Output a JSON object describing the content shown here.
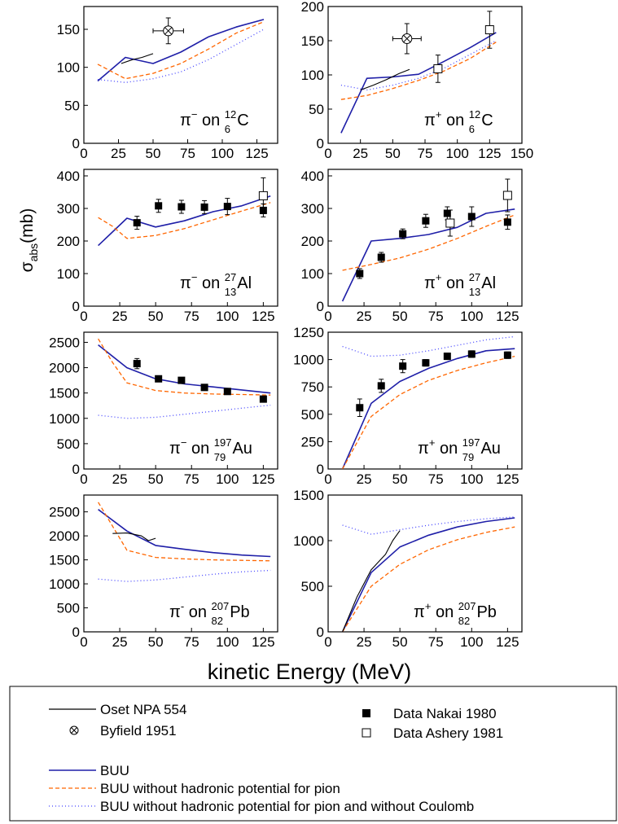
{
  "figure": {
    "ylabel_main": "σ",
    "ylabel_sub": "abs",
    "ylabel_unit": "(mb)",
    "xlabel": "kinetic Energy (MeV)"
  },
  "legend": {
    "oset": "Oset  NPA 554",
    "byfield": "Byfield 1951",
    "nakai": "Data Nakai 1980",
    "ashery": "Data Ashery 1981",
    "buu": "BUU",
    "buu_nohad": "BUU without hadronic potential for pion",
    "buu_nohad_nocoul": "BUU without hadronic potential for pion and without Coulomb"
  },
  "colors": {
    "buu": "#1f1fa8",
    "buu_nohad": "#ff6600",
    "buu_nohad_nocoul": "#4444ff",
    "oset": "#000000",
    "data": "#000000"
  },
  "chart_data": [
    {
      "type": "line",
      "label_pre": "π",
      "label_charge": "−",
      "label_mass": "12",
      "label_z": "6",
      "label_el": "C",
      "xlim": [
        0,
        140
      ],
      "ylim": [
        0,
        180
      ],
      "xticks": [
        "0",
        "25",
        "50",
        "75",
        "100",
        "125"
      ],
      "xtick_values": [
        0,
        25,
        50,
        75,
        100,
        125
      ],
      "yticks": [
        "0",
        "50",
        "100",
        "150"
      ],
      "ytick_values": [
        0,
        50,
        100,
        150
      ],
      "grid": false,
      "series": [
        {
          "key": "buu",
          "x": [
            10,
            30,
            50,
            70,
            90,
            110,
            130
          ],
          "y": [
            82,
            113,
            105,
            120,
            140,
            153,
            163
          ]
        },
        {
          "key": "buu_nohad",
          "x": [
            10,
            30,
            50,
            70,
            90,
            110,
            130
          ],
          "y": [
            104,
            85,
            92,
            105,
            124,
            145,
            160
          ]
        },
        {
          "key": "buu_nohad_nocoul",
          "x": [
            10,
            30,
            50,
            70,
            90,
            110,
            130
          ],
          "y": [
            84,
            80,
            85,
            94,
            110,
            130,
            150
          ]
        },
        {
          "key": "oset",
          "x": [
            27,
            35,
            42,
            50
          ],
          "y": [
            105,
            110,
            113,
            118
          ]
        }
      ],
      "byfield": [
        {
          "x": 61,
          "y": 148,
          "xerr": 11,
          "yerr": 17
        }
      ],
      "nakai": [],
      "ashery": []
    },
    {
      "type": "line",
      "label_pre": "π",
      "label_charge": "+",
      "label_mass": "12",
      "label_z": "6",
      "label_el": "C",
      "xlim": [
        0,
        150
      ],
      "ylim": [
        0,
        200
      ],
      "xticks": [
        "0",
        "25",
        "50",
        "75",
        "100",
        "125",
        "150"
      ],
      "xtick_values": [
        0,
        25,
        50,
        75,
        100,
        125,
        150
      ],
      "yticks": [
        "0",
        "50",
        "100",
        "150",
        "200"
      ],
      "ytick_values": [
        0,
        50,
        100,
        150,
        200
      ],
      "grid": false,
      "series": [
        {
          "key": "buu",
          "x": [
            10,
            30,
            50,
            70,
            90,
            110,
            130
          ],
          "y": [
            15,
            95,
            97,
            101,
            120,
            140,
            162
          ]
        },
        {
          "key": "buu_nohad",
          "x": [
            10,
            30,
            50,
            70,
            90,
            110,
            130
          ],
          "y": [
            64,
            70,
            80,
            92,
            106,
            124,
            148
          ]
        },
        {
          "key": "buu_nohad_nocoul",
          "x": [
            10,
            30,
            50,
            70,
            90,
            110,
            130
          ],
          "y": [
            85,
            78,
            85,
            95,
            110,
            130,
            150
          ]
        },
        {
          "key": "oset",
          "x": [
            25,
            35,
            45,
            55,
            63
          ],
          "y": [
            78,
            85,
            93,
            102,
            108
          ]
        }
      ],
      "byfield": [
        {
          "x": 61,
          "y": 153,
          "xerr": 11,
          "yerr": 22
        }
      ],
      "nakai": [],
      "ashery": [
        {
          "x": 85,
          "y": 109,
          "yerr": 20
        },
        {
          "x": 125,
          "y": 166,
          "yerr": 27
        }
      ]
    },
    {
      "type": "line",
      "label_pre": "π",
      "label_charge": "−",
      "label_mass": "27",
      "label_z": "13",
      "label_el": "Al",
      "xlim": [
        0,
        135
      ],
      "ylim": [
        0,
        420
      ],
      "xticks": [
        "0",
        "25",
        "50",
        "75",
        "100",
        "125"
      ],
      "xtick_values": [
        0,
        25,
        50,
        75,
        100,
        125
      ],
      "yticks": [
        "0",
        "100",
        "200",
        "300",
        "400"
      ],
      "ytick_values": [
        0,
        100,
        200,
        300,
        400
      ],
      "grid": false,
      "series": [
        {
          "key": "buu",
          "x": [
            10,
            30,
            50,
            70,
            90,
            110,
            130
          ],
          "y": [
            186,
            270,
            243,
            262,
            290,
            308,
            338
          ]
        },
        {
          "key": "buu_nohad",
          "x": [
            10,
            20,
            30,
            50,
            70,
            90,
            110,
            130
          ],
          "y": [
            272,
            245,
            208,
            217,
            238,
            265,
            292,
            318
          ]
        }
      ],
      "byfield": [],
      "nakai": [
        {
          "x": 37,
          "y": 256,
          "yerr": 20
        },
        {
          "x": 52,
          "y": 308,
          "yerr": 20
        },
        {
          "x": 68,
          "y": 305,
          "yerr": 20
        },
        {
          "x": 84,
          "y": 304,
          "yerr": 20
        },
        {
          "x": 100,
          "y": 306,
          "yerr": 25
        },
        {
          "x": 125,
          "y": 294,
          "yerr": 20
        }
      ],
      "ashery": [
        {
          "x": 125,
          "y": 339,
          "yerr": 55
        }
      ]
    },
    {
      "type": "line",
      "label_pre": "π",
      "label_charge": "+",
      "label_mass": "27",
      "label_z": "13",
      "label_el": "Al",
      "xlim": [
        0,
        135
      ],
      "ylim": [
        0,
        420
      ],
      "xticks": [
        "0",
        "25",
        "50",
        "75",
        "100",
        "125"
      ],
      "xtick_values": [
        0,
        25,
        50,
        75,
        100,
        125
      ],
      "yticks": [
        "0",
        "100",
        "200",
        "300",
        "400"
      ],
      "ytick_values": [
        0,
        100,
        200,
        300,
        400
      ],
      "grid": false,
      "series": [
        {
          "key": "buu",
          "x": [
            10,
            30,
            50,
            70,
            90,
            110,
            130
          ],
          "y": [
            15,
            200,
            208,
            220,
            242,
            285,
            298
          ]
        },
        {
          "key": "buu_nohad",
          "x": [
            10,
            30,
            50,
            70,
            90,
            110,
            130
          ],
          "y": [
            110,
            128,
            148,
            175,
            208,
            245,
            280
          ]
        }
      ],
      "byfield": [],
      "nakai": [
        {
          "x": 22,
          "y": 100,
          "yerr": 15
        },
        {
          "x": 37,
          "y": 150,
          "yerr": 15
        },
        {
          "x": 52,
          "y": 222,
          "yerr": 15
        },
        {
          "x": 68,
          "y": 262,
          "yerr": 20
        },
        {
          "x": 83,
          "y": 285,
          "yerr": 20
        },
        {
          "x": 100,
          "y": 275,
          "yerr": 30
        },
        {
          "x": 125,
          "y": 258,
          "yerr": 22
        }
      ],
      "ashery": [
        {
          "x": 85,
          "y": 255,
          "yerr": 40
        },
        {
          "x": 125,
          "y": 340,
          "yerr": 50
        }
      ]
    },
    {
      "type": "line",
      "label_pre": "π",
      "label_charge": "−",
      "label_mass": "197",
      "label_z": "79",
      "label_el": "Au",
      "xlim": [
        0,
        135
      ],
      "ylim": [
        0,
        2700
      ],
      "xticks": [
        "0",
        "25",
        "50",
        "75",
        "100",
        "125"
      ],
      "xtick_values": [
        0,
        25,
        50,
        75,
        100,
        125
      ],
      "yticks": [
        "0",
        "500",
        "1000",
        "1500",
        "2000",
        "2500"
      ],
      "ytick_values": [
        0,
        500,
        1000,
        1500,
        2000,
        2500
      ],
      "grid": false,
      "series": [
        {
          "key": "buu",
          "x": [
            10,
            30,
            50,
            70,
            90,
            110,
            130
          ],
          "y": [
            2450,
            2000,
            1780,
            1680,
            1620,
            1560,
            1500
          ]
        },
        {
          "key": "buu_nohad",
          "x": [
            10,
            20,
            30,
            50,
            70,
            90,
            110,
            130
          ],
          "y": [
            2570,
            2100,
            1700,
            1550,
            1500,
            1480,
            1470,
            1460
          ]
        },
        {
          "key": "buu_nohad_nocoul",
          "x": [
            10,
            30,
            50,
            70,
            90,
            110,
            130
          ],
          "y": [
            1060,
            1000,
            1020,
            1080,
            1140,
            1200,
            1260
          ]
        }
      ],
      "byfield": [],
      "nakai": [
        {
          "x": 37,
          "y": 2080,
          "yerr": 100
        },
        {
          "x": 52,
          "y": 1780,
          "yerr": 50
        },
        {
          "x": 68,
          "y": 1750,
          "yerr": 50
        },
        {
          "x": 84,
          "y": 1610,
          "yerr": 50
        },
        {
          "x": 100,
          "y": 1530,
          "yerr": 50
        },
        {
          "x": 125,
          "y": 1380,
          "yerr": 50
        }
      ],
      "ashery": []
    },
    {
      "type": "line",
      "label_pre": "π",
      "label_charge": "+",
      "label_mass": "197",
      "label_z": "79",
      "label_el": "Au",
      "xlim": [
        0,
        135
      ],
      "ylim": [
        0,
        1250
      ],
      "xticks": [
        "0",
        "25",
        "50",
        "75",
        "100",
        "125"
      ],
      "xtick_values": [
        0,
        25,
        50,
        75,
        100,
        125
      ],
      "yticks": [
        "0",
        "250",
        "500",
        "750",
        "1000",
        "1250"
      ],
      "ytick_values": [
        0,
        250,
        500,
        750,
        1000,
        1250
      ],
      "grid": false,
      "series": [
        {
          "key": "buu",
          "x": [
            10,
            30,
            50,
            70,
            90,
            110,
            130
          ],
          "y": [
            0,
            600,
            800,
            920,
            1010,
            1080,
            1100
          ]
        },
        {
          "key": "buu_nohad",
          "x": [
            10,
            30,
            50,
            70,
            90,
            110,
            130
          ],
          "y": [
            0,
            480,
            680,
            810,
            900,
            970,
            1030
          ]
        },
        {
          "key": "buu_nohad_nocoul",
          "x": [
            10,
            30,
            50,
            70,
            90,
            110,
            130
          ],
          "y": [
            1120,
            1030,
            1040,
            1080,
            1130,
            1180,
            1210
          ]
        }
      ],
      "byfield": [],
      "nakai": [
        {
          "x": 22,
          "y": 560,
          "yerr": 80
        },
        {
          "x": 37,
          "y": 760,
          "yerr": 60
        },
        {
          "x": 52,
          "y": 940,
          "yerr": 60
        },
        {
          "x": 68,
          "y": 970,
          "yerr": 30
        },
        {
          "x": 83,
          "y": 1030,
          "yerr": 30
        },
        {
          "x": 100,
          "y": 1050,
          "yerr": 30
        },
        {
          "x": 125,
          "y": 1040,
          "yerr": 30
        }
      ],
      "ashery": []
    },
    {
      "type": "line",
      "label_pre": "π",
      "label_charge": "-",
      "label_mass": "207",
      "label_z": "82",
      "label_el": "Pb",
      "xlim": [
        0,
        135
      ],
      "ylim": [
        0,
        2850
      ],
      "xticks": [
        "0",
        "25",
        "50",
        "75",
        "100",
        "125"
      ],
      "xtick_values": [
        0,
        25,
        50,
        75,
        100,
        125
      ],
      "yticks": [
        "0",
        "500",
        "1000",
        "1500",
        "2000",
        "2500"
      ],
      "ytick_values": [
        0,
        500,
        1000,
        1500,
        2000,
        2500
      ],
      "grid": false,
      "series": [
        {
          "key": "buu",
          "x": [
            10,
            30,
            50,
            70,
            90,
            110,
            130
          ],
          "y": [
            2550,
            2100,
            1800,
            1720,
            1650,
            1600,
            1570
          ]
        },
        {
          "key": "buu_nohad",
          "x": [
            10,
            20,
            30,
            50,
            70,
            90,
            110,
            130
          ],
          "y": [
            2700,
            2200,
            1700,
            1550,
            1520,
            1500,
            1490,
            1480
          ]
        },
        {
          "key": "buu_nohad_nocoul",
          "x": [
            10,
            30,
            50,
            70,
            90,
            110,
            130
          ],
          "y": [
            1100,
            1050,
            1080,
            1140,
            1200,
            1250,
            1280
          ]
        },
        {
          "key": "oset",
          "x": [
            20,
            30,
            40,
            45,
            50
          ],
          "y": [
            2050,
            2060,
            2000,
            1900,
            1950
          ]
        }
      ],
      "byfield": [],
      "nakai": [],
      "ashery": []
    },
    {
      "type": "line",
      "label_pre": "π",
      "label_charge": "+",
      "label_mass": "207",
      "label_z": "82",
      "label_el": "Pb",
      "xlim": [
        0,
        135
      ],
      "ylim": [
        0,
        1500
      ],
      "xticks": [
        "0",
        "25",
        "50",
        "75",
        "100",
        "125"
      ],
      "xtick_values": [
        0,
        25,
        50,
        75,
        100,
        125
      ],
      "yticks": [
        "0",
        "500",
        "1000",
        "1500"
      ],
      "ytick_values": [
        0,
        500,
        1000,
        1500
      ],
      "grid": false,
      "series": [
        {
          "key": "buu",
          "x": [
            10,
            30,
            50,
            70,
            90,
            110,
            130
          ],
          "y": [
            0,
            650,
            930,
            1060,
            1150,
            1210,
            1250
          ]
        },
        {
          "key": "buu_nohad",
          "x": [
            10,
            30,
            50,
            70,
            90,
            110,
            130
          ],
          "y": [
            0,
            500,
            740,
            900,
            1010,
            1090,
            1150
          ]
        },
        {
          "key": "buu_nohad_nocoul",
          "x": [
            10,
            30,
            50,
            70,
            90,
            110,
            130
          ],
          "y": [
            1170,
            1070,
            1120,
            1170,
            1210,
            1240,
            1260
          ]
        },
        {
          "key": "oset",
          "x": [
            10,
            20,
            30,
            40,
            45,
            50
          ],
          "y": [
            0,
            380,
            680,
            850,
            1000,
            1110
          ]
        }
      ],
      "byfield": [],
      "nakai": [],
      "ashery": []
    }
  ]
}
